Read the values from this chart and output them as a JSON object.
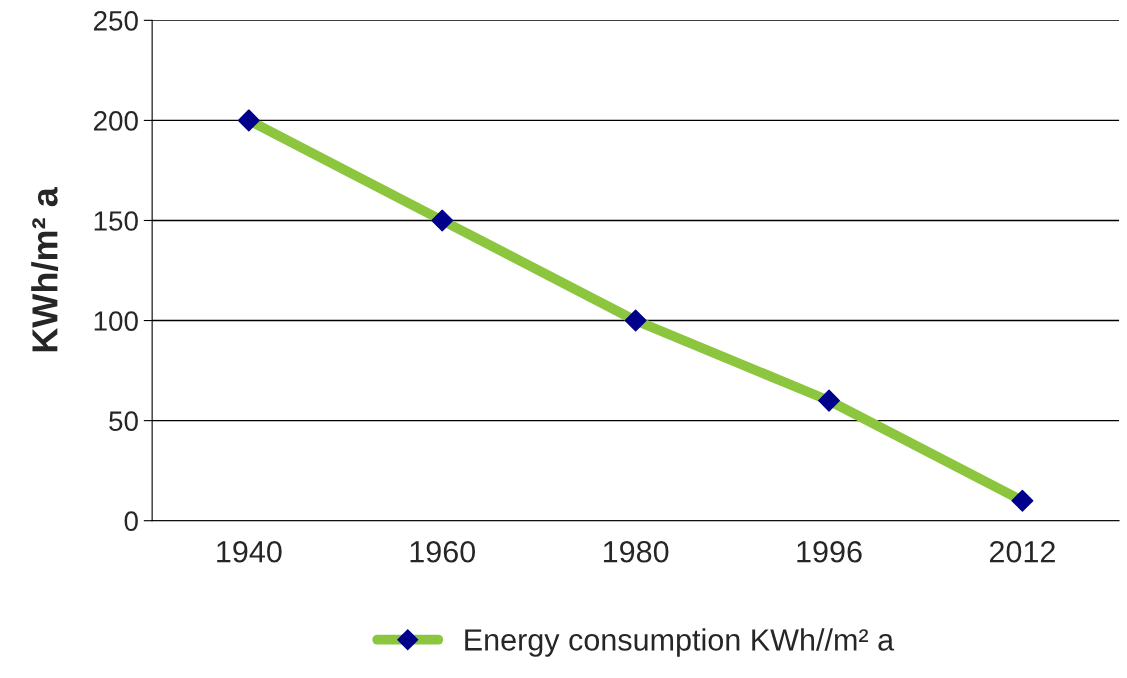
{
  "chart_data": {
    "type": "line",
    "ylabel": "KWh/m² a",
    "categories": [
      "1940",
      "1960",
      "1980",
      "1996",
      "2012"
    ],
    "series": [
      {
        "name": "Energy consumption KWh//m² a",
        "color": "#8cc63f",
        "colors": [
          "#00008b",
          "#00008b",
          "#00008b",
          "#00008b",
          "#00008b"
        ],
        "values": [
          200,
          150,
          100,
          60,
          10
        ]
      }
    ],
    "ylim": [
      0,
      250
    ],
    "yticks": [
      0,
      50,
      100,
      150,
      200,
      250
    ],
    "grid": "y",
    "legend": "bottom",
    "marker": "diamond",
    "line_style": "solid"
  }
}
